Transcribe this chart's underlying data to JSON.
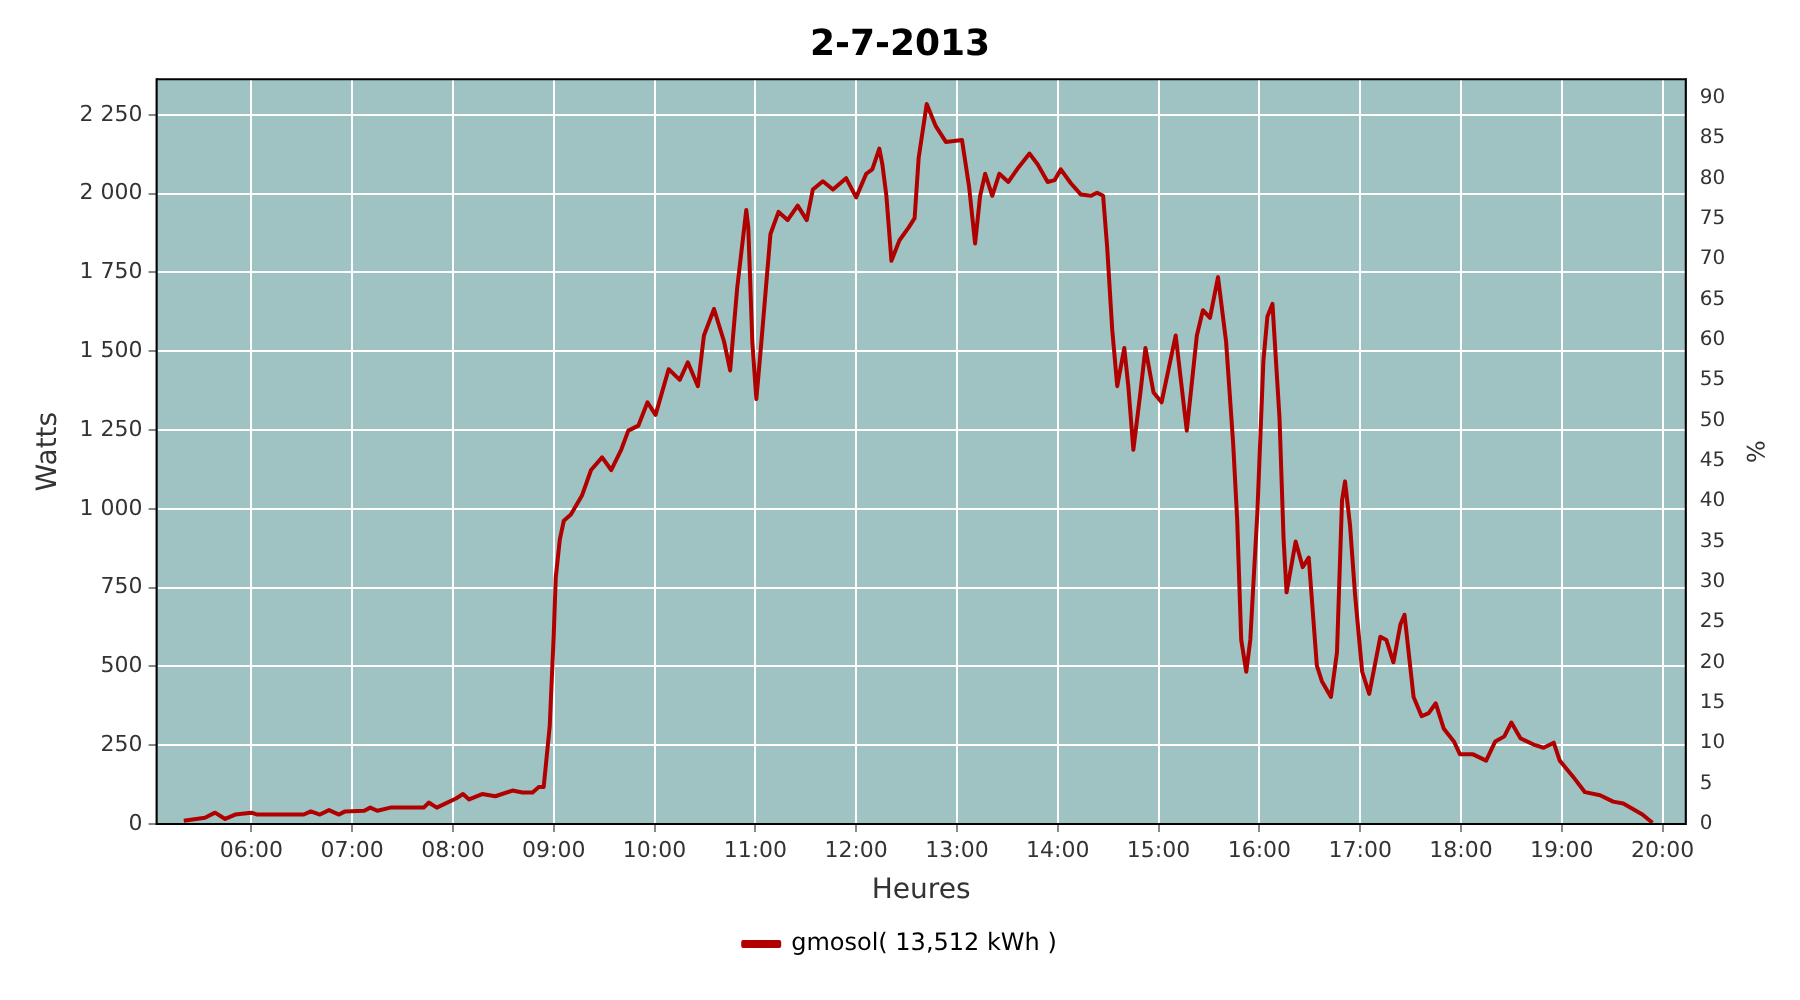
{
  "chart_data": {
    "type": "line",
    "title": "2-7-2013",
    "xlabel": "Heures",
    "ylabel": "Watts",
    "y2label": "%",
    "xlim": [
      5.06,
      20.23
    ],
    "xticks": [
      {
        "value": 6,
        "label": "06:00"
      },
      {
        "value": 7,
        "label": "07:00"
      },
      {
        "value": 8,
        "label": "08:00"
      },
      {
        "value": 9,
        "label": "09:00"
      },
      {
        "value": 10,
        "label": "10:00"
      },
      {
        "value": 11,
        "label": "11:00"
      },
      {
        "value": 12,
        "label": "12:00"
      },
      {
        "value": 13,
        "label": "13:00"
      },
      {
        "value": 14,
        "label": "14:00"
      },
      {
        "value": 15,
        "label": "15:00"
      },
      {
        "value": 16,
        "label": "16:00"
      },
      {
        "value": 17,
        "label": "17:00"
      },
      {
        "value": 18,
        "label": "18:00"
      },
      {
        "value": 19,
        "label": "19:00"
      },
      {
        "value": 20,
        "label": "20:00"
      }
    ],
    "ylim": [
      0,
      2363
    ],
    "yticks": [
      0,
      250,
      500,
      750,
      {
        "value": 1000,
        "label": "1 000"
      },
      {
        "value": 1250,
        "label": "1 250"
      },
      {
        "value": 1500,
        "label": "1 500"
      },
      {
        "value": 1750,
        "label": "1 750"
      },
      {
        "value": 2000,
        "label": "2 000"
      },
      {
        "value": 2250,
        "label": "2 250"
      }
    ],
    "y2lim": [
      0,
      92.3
    ],
    "y2ticks": [
      0,
      5,
      10,
      15,
      20,
      25,
      30,
      35,
      40,
      45,
      50,
      55,
      60,
      65,
      70,
      75,
      80,
      85,
      90
    ],
    "grid": true,
    "legend": "bottom",
    "marker": "none",
    "line_style": "solid",
    "series": [
      {
        "name": "gmosol( 13,512 kWh )",
        "color": "#b00000",
        "x": [
          5.33,
          5.54,
          5.64,
          5.74,
          5.84,
          6.0,
          6.06,
          6.52,
          6.59,
          6.68,
          6.77,
          6.87,
          6.93,
          7.12,
          7.18,
          7.25,
          7.38,
          7.71,
          7.76,
          7.84,
          8.03,
          8.1,
          8.16,
          8.29,
          8.42,
          8.59,
          8.69,
          8.79,
          8.85,
          8.9,
          8.92,
          8.96,
          9.0,
          9.02,
          9.06,
          9.1,
          9.17,
          9.28,
          9.37,
          9.48,
          9.57,
          9.67,
          9.74,
          9.84,
          9.93,
          10.01,
          10.14,
          10.25,
          10.33,
          10.43,
          10.49,
          10.59,
          10.69,
          10.75,
          10.82,
          10.91,
          10.93,
          10.97,
          11.01,
          11.06,
          11.15,
          11.23,
          11.32,
          11.42,
          11.51,
          11.57,
          11.67,
          11.77,
          11.9,
          12.0,
          12.1,
          12.16,
          12.23,
          12.26,
          12.3,
          12.35,
          12.43,
          12.52,
          12.58,
          12.62,
          12.7,
          12.79,
          12.89,
          13.05,
          13.12,
          13.18,
          13.23,
          13.28,
          13.35,
          13.42,
          13.51,
          13.61,
          13.72,
          13.8,
          13.9,
          13.97,
          14.03,
          14.13,
          14.23,
          14.33,
          14.39,
          14.45,
          14.49,
          14.54,
          14.59,
          14.66,
          14.7,
          14.75,
          14.82,
          14.87,
          14.95,
          15.03,
          15.17,
          15.28,
          15.38,
          15.44,
          15.51,
          15.59,
          15.67,
          15.74,
          15.78,
          15.82,
          15.87,
          15.91,
          15.98,
          16.04,
          16.08,
          16.13,
          16.2,
          16.24,
          16.27,
          16.36,
          16.43,
          16.49,
          16.57,
          16.62,
          16.71,
          16.77,
          16.82,
          16.85,
          16.9,
          16.95,
          17.02,
          17.09,
          17.2,
          17.26,
          17.33,
          17.4,
          17.44,
          17.53,
          17.61,
          17.68,
          17.75,
          17.83,
          17.93,
          17.99,
          18.12,
          18.25,
          18.34,
          18.43,
          18.5,
          18.59,
          18.72,
          18.82,
          18.92,
          18.98,
          19.11,
          19.23,
          19.38,
          19.51,
          19.61,
          19.8,
          19.9
        ],
        "values": [
          10,
          20,
          36,
          16,
          30,
          36,
          30,
          30,
          40,
          30,
          44,
          30,
          40,
          42,
          52,
          42,
          52,
          52,
          68,
          52,
          81,
          95,
          78,
          95,
          88,
          106,
          100,
          100,
          117,
          117,
          181,
          310,
          601,
          782,
          902,
          962,
          982,
          1042,
          1123,
          1163,
          1123,
          1188,
          1248,
          1264,
          1338,
          1298,
          1443,
          1409,
          1465,
          1389,
          1550,
          1634,
          1530,
          1439,
          1701,
          1948,
          1892,
          1530,
          1348,
          1530,
          1872,
          1942,
          1916,
          1962,
          1916,
          2013,
          2039,
          2013,
          2049,
          1988,
          2063,
          2077,
          2143,
          2093,
          1993,
          1787,
          1852,
          1892,
          1922,
          2113,
          2284,
          2214,
          2164,
          2170,
          2023,
          1842,
          1993,
          2063,
          1993,
          2063,
          2037,
          2083,
          2127,
          2093,
          2037,
          2043,
          2077,
          2033,
          1997,
          1993,
          2003,
          1993,
          1831,
          1570,
          1389,
          1510,
          1389,
          1187,
          1369,
          1510,
          1369,
          1338,
          1550,
          1248,
          1550,
          1630,
          1606,
          1735,
          1530,
          1208,
          966,
          584,
          483,
          584,
          986,
          1469,
          1610,
          1650,
          1288,
          906,
          735,
          896,
          815,
          845,
          503,
          453,
          403,
          544,
          1026,
          1087,
          946,
          725,
          483,
          413,
          594,
          584,
          513,
          634,
          664,
          403,
          342,
          352,
          383,
          302,
          262,
          221,
          221,
          201,
          262,
          278,
          322,
          272,
          252,
          242,
          258,
          201,
          151,
          101,
          91,
          71,
          65,
          30,
          4
        ]
      }
    ]
  }
}
